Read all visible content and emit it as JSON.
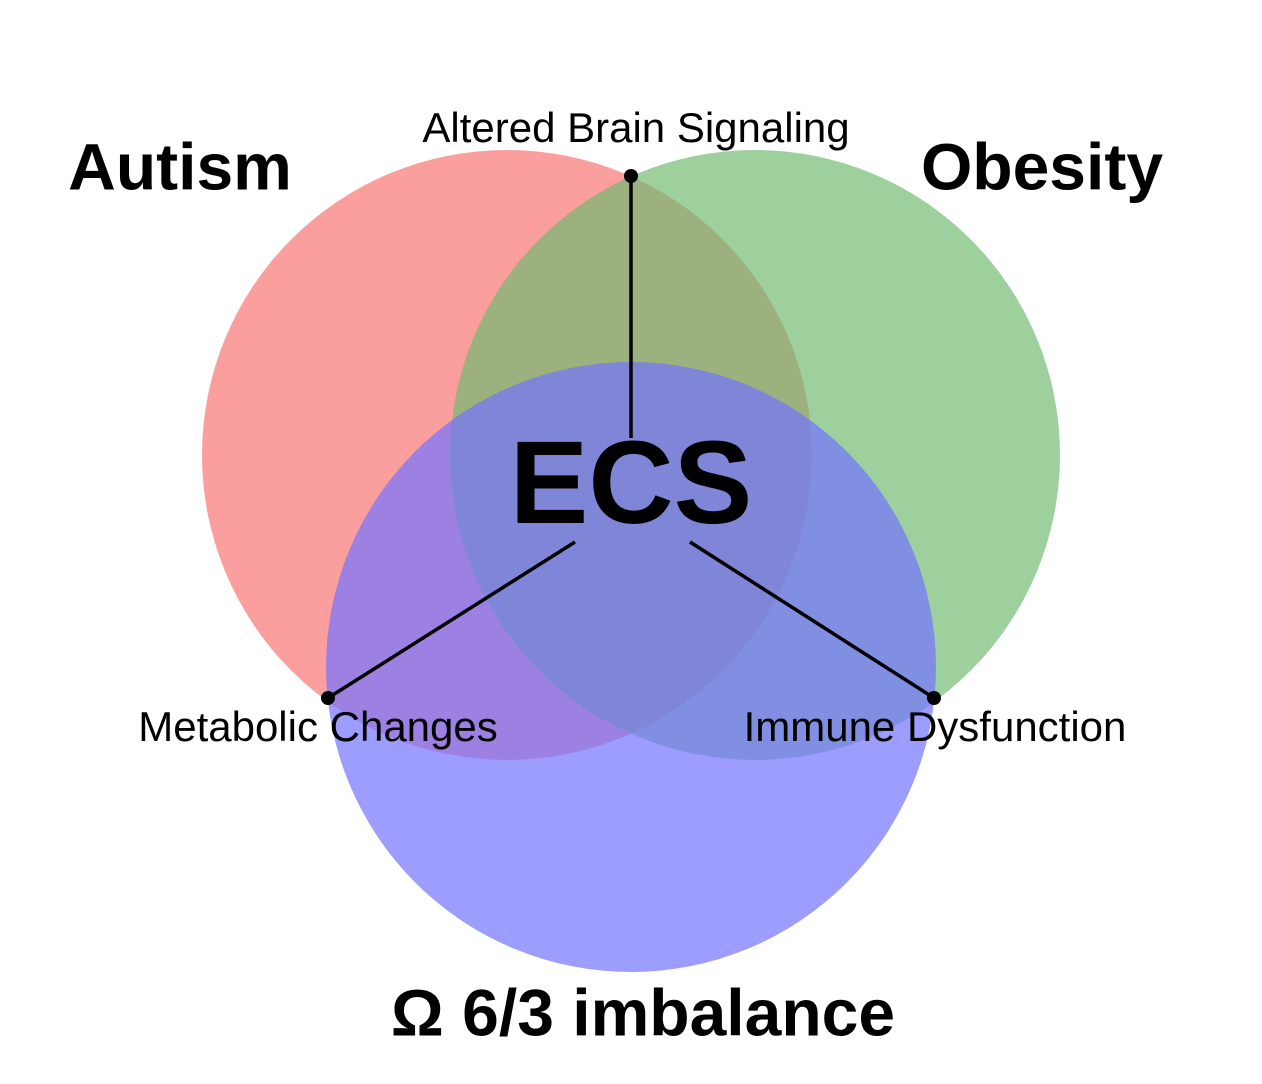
{
  "title": null,
  "sets": [
    {
      "label": "Autism"
    },
    {
      "label": "Obesity"
    },
    {
      "label": "Ω 6/3 imbalance"
    }
  ],
  "overlaps": [
    {
      "label": "Altered Brain Signaling"
    },
    {
      "label": "Metabolic Changes"
    },
    {
      "label": "Immune Dysfunction"
    }
  ],
  "center": {
    "label": "ECS"
  }
}
